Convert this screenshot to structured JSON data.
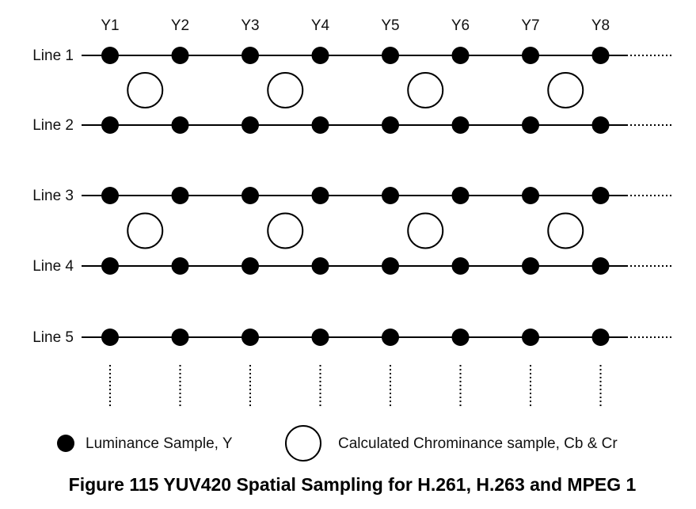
{
  "columns": [
    "Y1",
    "Y2",
    "Y3",
    "Y4",
    "Y5",
    "Y6",
    "Y7",
    "Y8"
  ],
  "rows": [
    {
      "label": "Line 1"
    },
    {
      "label": "Line 2"
    },
    {
      "label": "Line 3"
    },
    {
      "label": "Line 4"
    },
    {
      "label": "Line 5"
    }
  ],
  "legend": {
    "luminance": "Luminance Sample, Y",
    "chrominance": "Calculated Chrominance sample, Cb & Cr"
  },
  "caption": "Figure 115 YUV420 Spatial Sampling for H.261, H.263 and MPEG 1",
  "colors": {
    "luminance_fill": "#000000",
    "chrominance_fill": "#ffffff",
    "line": "#000000"
  }
}
